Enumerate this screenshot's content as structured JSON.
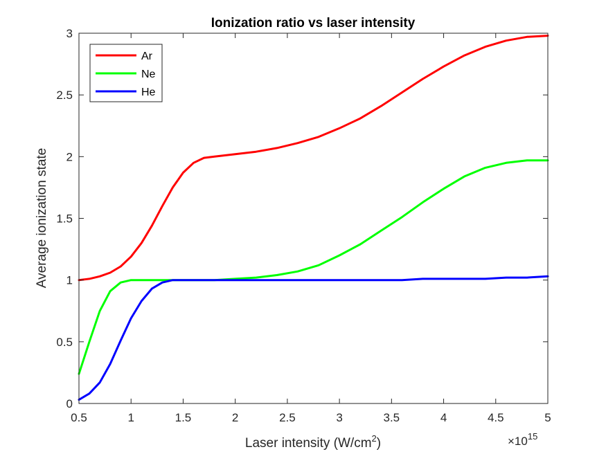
{
  "chart_data": {
    "type": "line",
    "title": "Ionization ratio vs laser intensity",
    "xlabel": "Laser intensity (W/cm",
    "xlabel_superscript": "2",
    "xlabel_suffix": ")",
    "ylabel": "Average ionization state",
    "x_exponent_base": "×10",
    "x_exponent_power": "15",
    "xlim": [
      0.5,
      5
    ],
    "ylim": [
      0,
      3
    ],
    "x_ticks": [
      0.5,
      1,
      1.5,
      2,
      2.5,
      3,
      3.5,
      4,
      4.5,
      5
    ],
    "x_tick_labels": [
      "0.5",
      "1",
      "1.5",
      "2",
      "2.5",
      "3",
      "3.5",
      "4",
      "4.5",
      "5"
    ],
    "y_ticks": [
      0,
      0.5,
      1,
      1.5,
      2,
      2.5,
      3
    ],
    "y_tick_labels": [
      "0",
      "0.5",
      "1",
      "1.5",
      "2",
      "2.5",
      "3"
    ],
    "grid": false,
    "legend_position": "top-left",
    "x": [
      0.5,
      0.6,
      0.7,
      0.8,
      0.9,
      1.0,
      1.1,
      1.2,
      1.3,
      1.4,
      1.5,
      1.6,
      1.7,
      1.8,
      2.0,
      2.2,
      2.4,
      2.6,
      2.8,
      3.0,
      3.2,
      3.4,
      3.6,
      3.8,
      4.0,
      4.2,
      4.4,
      4.6,
      4.8,
      5.0
    ],
    "series": [
      {
        "name": "Ar",
        "color": "#ff0000",
        "values": [
          1.0,
          1.01,
          1.03,
          1.06,
          1.11,
          1.19,
          1.3,
          1.44,
          1.6,
          1.75,
          1.87,
          1.95,
          1.99,
          2.0,
          2.02,
          2.04,
          2.07,
          2.11,
          2.16,
          2.23,
          2.31,
          2.41,
          2.52,
          2.63,
          2.73,
          2.82,
          2.89,
          2.94,
          2.97,
          2.98
        ]
      },
      {
        "name": "Ne",
        "color": "#00ff00",
        "values": [
          0.24,
          0.5,
          0.75,
          0.91,
          0.98,
          1.0,
          1.0,
          1.0,
          1.0,
          1.0,
          1.0,
          1.0,
          1.0,
          1.0,
          1.01,
          1.02,
          1.04,
          1.07,
          1.12,
          1.2,
          1.29,
          1.4,
          1.51,
          1.63,
          1.74,
          1.84,
          1.91,
          1.95,
          1.97,
          1.97
        ]
      },
      {
        "name": "He",
        "color": "#0000ff",
        "values": [
          0.03,
          0.08,
          0.17,
          0.32,
          0.51,
          0.69,
          0.83,
          0.93,
          0.98,
          1.0,
          1.0,
          1.0,
          1.0,
          1.0,
          1.0,
          1.0,
          1.0,
          1.0,
          1.0,
          1.0,
          1.0,
          1.0,
          1.0,
          1.01,
          1.01,
          1.01,
          1.01,
          1.02,
          1.02,
          1.03
        ]
      }
    ]
  }
}
